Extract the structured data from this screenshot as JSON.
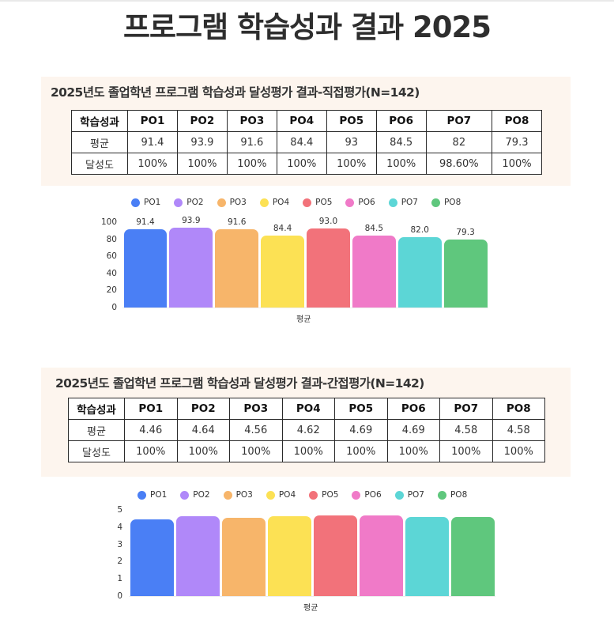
{
  "page": {
    "title": "프로그램 학습성과 결과 2025"
  },
  "direct": {
    "title": "2025년도 졸업학년 프로그램 학습성과 달성평가 결과-직접평가(N=142)",
    "table": {
      "header": [
        "학습성과",
        "PO1",
        "PO2",
        "PO3",
        "PO4",
        "PO5",
        "PO6",
        "PO7",
        "PO8"
      ],
      "rows": [
        [
          "평균",
          "91.4",
          "93.9",
          "91.6",
          "84.4",
          "93",
          "84.5",
          "82",
          "79.3"
        ],
        [
          "달성도",
          "100%",
          "100%",
          "100%",
          "100%",
          "100%",
          "100%",
          "98.60%",
          "100%"
        ]
      ]
    }
  },
  "indirect": {
    "title": "2025년도 졸업학년 프로그램 학습성과 달성평가 결과-간접평가(N=142)",
    "table": {
      "header": [
        "학습성과",
        "PO1",
        "PO2",
        "PO3",
        "PO4",
        "PO5",
        "PO6",
        "PO7",
        "PO8"
      ],
      "rows": [
        [
          "평균",
          "4.46",
          "4.64",
          "4.56",
          "4.62",
          "4.69",
          "4.69",
          "4.58",
          "4.58"
        ],
        [
          "달성도",
          "100%",
          "100%",
          "100%",
          "100%",
          "100%",
          "100%",
          "100%",
          "100%"
        ]
      ]
    }
  },
  "colors": {
    "PO1": "#4a7ff5",
    "PO2": "#b088f9",
    "PO3": "#f7b56a",
    "PO4": "#fce154",
    "PO5": "#f2727a",
    "PO6": "#f07ac8",
    "PO7": "#5cd6d6",
    "PO8": "#5fc77d",
    "panel_bg": "#fdf5ee"
  },
  "chart_data": [
    {
      "type": "bar",
      "title": "",
      "xlabel": "평균",
      "ylabel": "",
      "categories": [
        "평균"
      ],
      "series": [
        {
          "name": "PO1",
          "values": [
            91.4
          ],
          "label": "91.4"
        },
        {
          "name": "PO2",
          "values": [
            93.9
          ],
          "label": "93.9"
        },
        {
          "name": "PO3",
          "values": [
            91.6
          ],
          "label": "91.6"
        },
        {
          "name": "PO4",
          "values": [
            84.4
          ],
          "label": "84.4"
        },
        {
          "name": "PO5",
          "values": [
            93.0
          ],
          "label": "93.0"
        },
        {
          "name": "PO6",
          "values": [
            84.5
          ],
          "label": "84.5"
        },
        {
          "name": "PO7",
          "values": [
            82.0
          ],
          "label": "82.0"
        },
        {
          "name": "PO8",
          "values": [
            79.3
          ],
          "label": "79.3"
        }
      ],
      "yticks": [
        "0",
        "20",
        "40",
        "60",
        "80",
        "100"
      ],
      "ylim": [
        0,
        100
      ],
      "legend_position": "top",
      "data_labels": true,
      "grid": false
    },
    {
      "type": "bar",
      "title": "",
      "xlabel": "평균",
      "ylabel": "",
      "categories": [
        "평균"
      ],
      "series": [
        {
          "name": "PO1",
          "values": [
            4.46
          ]
        },
        {
          "name": "PO2",
          "values": [
            4.64
          ]
        },
        {
          "name": "PO3",
          "values": [
            4.56
          ]
        },
        {
          "name": "PO4",
          "values": [
            4.62
          ]
        },
        {
          "name": "PO5",
          "values": [
            4.69
          ]
        },
        {
          "name": "PO6",
          "values": [
            4.69
          ]
        },
        {
          "name": "PO7",
          "values": [
            4.58
          ]
        },
        {
          "name": "PO8",
          "values": [
            4.58
          ]
        }
      ],
      "yticks": [
        "0",
        "1",
        "2",
        "3",
        "4",
        "5"
      ],
      "ylim": [
        0,
        5
      ],
      "legend_position": "top",
      "data_labels": false,
      "grid": false
    }
  ]
}
